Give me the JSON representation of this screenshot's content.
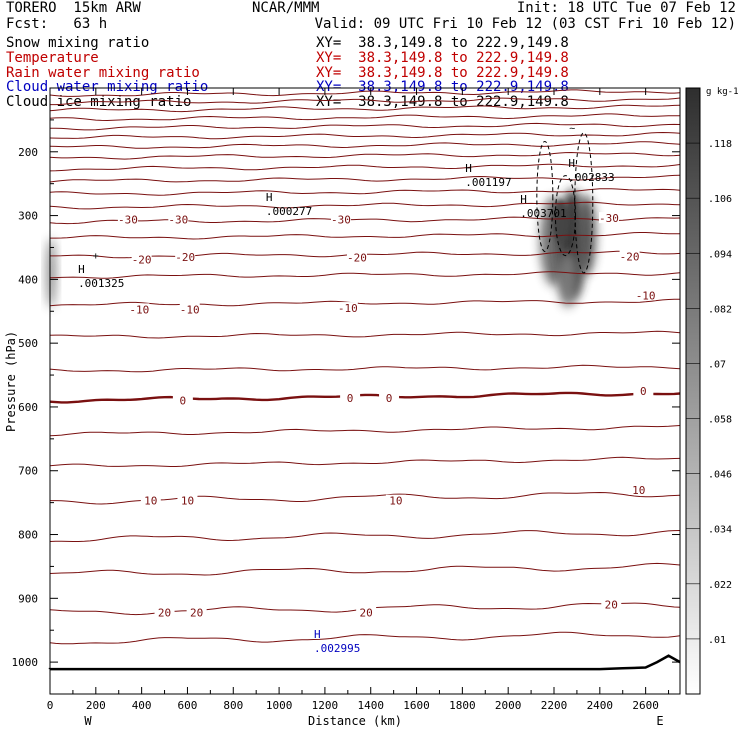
{
  "header": {
    "model": "TORERO  15km ARW",
    "center": "NCAR/MMM",
    "init": "Init: 18 UTC Tue 07 Feb 12",
    "fcst": "Fcst:   63 h",
    "valid": "Valid: 09 UTC Fri 10 Feb 12 (03 CST Fri 10 Feb 12)"
  },
  "fields": [
    {
      "label": "Snow mixing ratio",
      "xy": "XY=  38.3,149.8 to 222.9,149.8",
      "color": "#000000"
    },
    {
      "label": "Temperature",
      "xy": "XY=  38.3,149.8 to 222.9,149.8",
      "color": "#c00000"
    },
    {
      "label": "Rain water mixing ratio",
      "xy": "XY=  38.3,149.8 to 222.9,149.8",
      "color": "#c00000"
    },
    {
      "label": "Cloud water mixing ratio",
      "xy": "XY=  38.3,149.8 to 222.9,149.8",
      "color": "#0000c0"
    },
    {
      "label": "Cloud ice mixing ratio",
      "xy": "XY=  38.3,149.8 to 222.9,149.8",
      "color": "#000000"
    }
  ],
  "chart_data": {
    "type": "cross-section",
    "xlabel": "Distance (km)",
    "ylabel": "Pressure (hPa)",
    "xlim": [
      0,
      2750
    ],
    "ylim": [
      1050,
      100
    ],
    "x_ticks": [
      0,
      200,
      400,
      600,
      800,
      1000,
      1200,
      1400,
      1600,
      1800,
      2000,
      2200,
      2400,
      2600
    ],
    "y_ticks": [
      200,
      300,
      400,
      500,
      600,
      700,
      800,
      900,
      1000
    ],
    "end_labels": {
      "left": "W",
      "right": "E"
    },
    "colorbar": {
      "units": "g kg-1",
      "levels": [
        ".01",
        ".022",
        ".034",
        ".046",
        ".058",
        ".07",
        ".082",
        ".094",
        ".106",
        ".118"
      ]
    },
    "temperature_labels": [
      {
        "x": 340,
        "p": 306,
        "label": "-30"
      },
      {
        "x": 560,
        "p": 306,
        "label": "-30"
      },
      {
        "x": 1270,
        "p": 306,
        "label": "-30"
      },
      {
        "x": 2440,
        "p": 304,
        "label": "-30"
      },
      {
        "x": 400,
        "p": 369,
        "label": "-20"
      },
      {
        "x": 590,
        "p": 365,
        "label": "-20"
      },
      {
        "x": 1340,
        "p": 366,
        "label": "-20"
      },
      {
        "x": 2530,
        "p": 364,
        "label": "-20"
      },
      {
        "x": 390,
        "p": 447,
        "label": "-10"
      },
      {
        "x": 610,
        "p": 447,
        "label": "-10"
      },
      {
        "x": 1300,
        "p": 445,
        "label": "-10"
      },
      {
        "x": 2600,
        "p": 425,
        "label": "-10"
      },
      {
        "x": 580,
        "p": 590,
        "label": "0"
      },
      {
        "x": 1310,
        "p": 586,
        "label": "0"
      },
      {
        "x": 1480,
        "p": 586,
        "label": "0"
      },
      {
        "x": 2590,
        "p": 575,
        "label": "0"
      },
      {
        "x": 440,
        "p": 747,
        "label": "10"
      },
      {
        "x": 600,
        "p": 747,
        "label": "10"
      },
      {
        "x": 1510,
        "p": 747,
        "label": "10"
      },
      {
        "x": 2570,
        "p": 730,
        "label": "10"
      },
      {
        "x": 500,
        "p": 922,
        "label": "20"
      },
      {
        "x": 640,
        "p": 922,
        "label": "20"
      },
      {
        "x": 1380,
        "p": 922,
        "label": "20"
      },
      {
        "x": 2450,
        "p": 910,
        "label": "20"
      }
    ],
    "maxima_labels": [
      {
        "x": 140,
        "p": 404,
        "value": ".001325",
        "color": "#000000"
      },
      {
        "x": 960,
        "p": 291,
        "value": ".000277",
        "color": "#000000"
      },
      {
        "x": 1830,
        "p": 246,
        "value": ".001197",
        "color": "#000000"
      },
      {
        "x": 2070,
        "p": 294,
        "value": ".003701",
        "color": "#000000"
      },
      {
        "x": 2280,
        "p": 238,
        "value": ".002833",
        "color": "#000000"
      },
      {
        "x": 1170,
        "p": 976,
        "value": ".002995",
        "color": "#0000c0"
      }
    ],
    "max_symbol": "H",
    "minor_labels": [
      {
        "x": 2280,
        "p": 168,
        "label": "~"
      },
      {
        "x": 200,
        "p": 368,
        "label": "+"
      }
    ]
  }
}
